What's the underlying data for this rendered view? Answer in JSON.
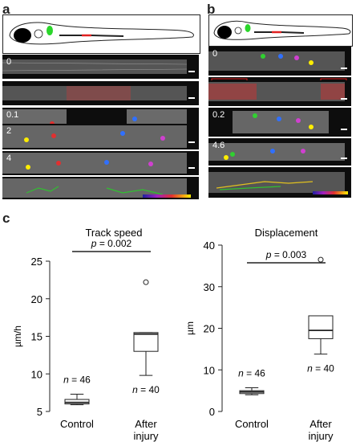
{
  "panels": {
    "a": {
      "label": "a",
      "time_labels": [
        "0",
        "0.1",
        "2",
        "4"
      ]
    },
    "b": {
      "label": "b",
      "time_labels": [
        "0",
        "0.2",
        "4.6"
      ]
    },
    "c": {
      "label": "c"
    }
  },
  "chart_data": [
    {
      "type": "boxplot",
      "title": "Track speed",
      "ylabel": "µm/h",
      "ylim": [
        5,
        25
      ],
      "yticks": [
        5,
        10,
        15,
        20,
        25
      ],
      "categories": [
        "Control",
        "After injury"
      ],
      "category_lines": [
        [
          "Control"
        ],
        [
          "After",
          "injury"
        ]
      ],
      "boxes": [
        {
          "category": "Control",
          "whisker_low": 5.9,
          "q1": 6.0,
          "median": 6.2,
          "q3": 6.6,
          "whisker_high": 7.3,
          "n_label": "n = 46",
          "outliers": []
        },
        {
          "category": "After injury",
          "whisker_low": 9.8,
          "q1": 13.0,
          "median": 15.3,
          "q3": 15.5,
          "whisker_high": 15.5,
          "n_label": "n = 40",
          "outliers": [
            22.2
          ]
        }
      ],
      "significance": {
        "p_label": "p = 0.002"
      }
    },
    {
      "type": "boxplot",
      "title": "Displacement",
      "ylabel": "µm",
      "ylim": [
        0,
        40
      ],
      "yticks": [
        0,
        10,
        20,
        30,
        40
      ],
      "categories": [
        "Control",
        "After injury"
      ],
      "category_lines": [
        [
          "Control"
        ],
        [
          "After",
          "injury"
        ]
      ],
      "boxes": [
        {
          "category": "Control",
          "whisker_low": 4.0,
          "q1": 4.3,
          "median": 4.7,
          "q3": 5.0,
          "whisker_high": 5.7,
          "n_label": "n = 46",
          "outliers": []
        },
        {
          "category": "After injury",
          "whisker_low": 13.8,
          "q1": 17.5,
          "median": 19.5,
          "q3": 23.0,
          "whisker_high": 23.0,
          "n_label": "n = 40",
          "outliers": [
            36.5
          ]
        }
      ],
      "significance": {
        "p_label": "p = 0.003"
      }
    }
  ]
}
